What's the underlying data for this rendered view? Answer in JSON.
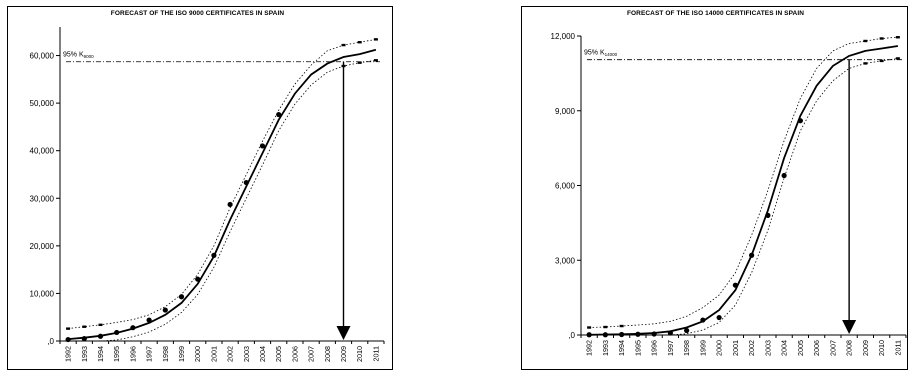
{
  "chart_data": [
    {
      "type": "line",
      "title": "FORECAST OF THE ISO 9000 CERTIFICATES IN SPAIN",
      "ylim": [
        0,
        66000
      ],
      "yticks": [
        0,
        10000,
        20000,
        30000,
        40000,
        50000,
        60000
      ],
      "yticklabels": [
        ",0",
        "10,000",
        "20,000",
        "30,000",
        "40,000",
        "50,000",
        "60,000"
      ],
      "x": [
        1992,
        1993,
        1994,
        1995,
        1996,
        1997,
        1998,
        1999,
        2000,
        2001,
        2002,
        2003,
        2004,
        2005,
        2006,
        2007,
        2008,
        2009,
        2010,
        2011
      ],
      "xticklabels": [
        "1992",
        "1993",
        "1994",
        "1995",
        "1996",
        "1997",
        "1998",
        "1999",
        "2000",
        "2001",
        "2002",
        "2003",
        "2004",
        "2005",
        "2006",
        "2007",
        "2008",
        "2009",
        "2010",
        "2011"
      ],
      "annotation_label": "95% K",
      "annotation_sub": "9000",
      "k95_value": 58700,
      "arrow_year": 2009,
      "series": [
        {
          "role": "observed",
          "x": [
            1992,
            1993,
            1994,
            1995,
            1996,
            1997,
            1998,
            1999,
            2000,
            2001,
            2002,
            2003,
            2004,
            2005
          ],
          "values": [
            300,
            500,
            1000,
            1800,
            2800,
            4400,
            6500,
            9300,
            13000,
            18000,
            28700,
            33300,
            41000,
            47600
          ]
        },
        {
          "role": "fit",
          "values": [
            400,
            700,
            1100,
            1700,
            2600,
            3800,
            5500,
            8000,
            12000,
            17800,
            25500,
            32500,
            39500,
            46500,
            52000,
            56000,
            58300,
            59700,
            60300,
            61200
          ]
        },
        {
          "role": "upper",
          "values": [
            2600,
            3000,
            3400,
            3900,
            4500,
            5500,
            7200,
            9800,
            14000,
            20000,
            28000,
            35000,
            42000,
            48500,
            54000,
            58000,
            61000,
            62200,
            62800,
            63400
          ]
        },
        {
          "role": "lower",
          "values": [
            -500,
            -400,
            -200,
            200,
            900,
            1900,
            3500,
            6000,
            9800,
            15500,
            23000,
            30000,
            37000,
            44200,
            49800,
            53800,
            56500,
            57800,
            58500,
            59000
          ]
        }
      ]
    },
    {
      "type": "line",
      "title": "FORECAST OF THE ISO 14000 CERTIFICATES IN SPAIN",
      "ylim": [
        0,
        12000
      ],
      "yticks": [
        0,
        3000,
        6000,
        9000,
        12000
      ],
      "yticklabels": [
        ",0",
        "3,000",
        "6,000",
        "9,000",
        "12,000"
      ],
      "x": [
        1992,
        1993,
        1994,
        1995,
        1996,
        1997,
        1998,
        1999,
        2000,
        2001,
        2002,
        2003,
        2004,
        2005,
        2006,
        2007,
        2008,
        2009,
        2010,
        2011
      ],
      "xticklabels": [
        "1992",
        "1993",
        "1994",
        "1995",
        "1996",
        "1997",
        "1998",
        "1999",
        "2000",
        "2001",
        "2002",
        "2003",
        "2004",
        "2005",
        "2006",
        "2007",
        "2008",
        "2009",
        "2010",
        "2011"
      ],
      "annotation_label": "95% K",
      "annotation_sub": "14000",
      "k95_value": 11050,
      "arrow_year": 2008,
      "series": [
        {
          "role": "observed",
          "x": [
            1992,
            1993,
            1994,
            1995,
            1996,
            1997,
            1998,
            1999,
            2000,
            2001,
            2002,
            2003,
            2004,
            2005
          ],
          "values": [
            10,
            10,
            20,
            30,
            40,
            80,
            180,
            600,
            700,
            2000,
            3200,
            4800,
            6400,
            8600
          ]
        },
        {
          "role": "fit",
          "values": [
            10,
            20,
            30,
            50,
            80,
            150,
            300,
            550,
            1000,
            1800,
            3200,
            5000,
            7100,
            8800,
            10000,
            10800,
            11200,
            11400,
            11500,
            11600
          ]
        },
        {
          "role": "upper",
          "values": [
            300,
            320,
            360,
            400,
            450,
            550,
            750,
            1100,
            1600,
            2500,
            4000,
            5800,
            7800,
            9500,
            10700,
            11400,
            11700,
            11800,
            11900,
            11950
          ]
        },
        {
          "role": "lower",
          "values": [
            -200,
            -200,
            -180,
            -150,
            -100,
            -50,
            50,
            200,
            500,
            1200,
            2500,
            4200,
            6300,
            8200,
            9400,
            10200,
            10700,
            10900,
            11000,
            11100
          ]
        }
      ]
    }
  ]
}
